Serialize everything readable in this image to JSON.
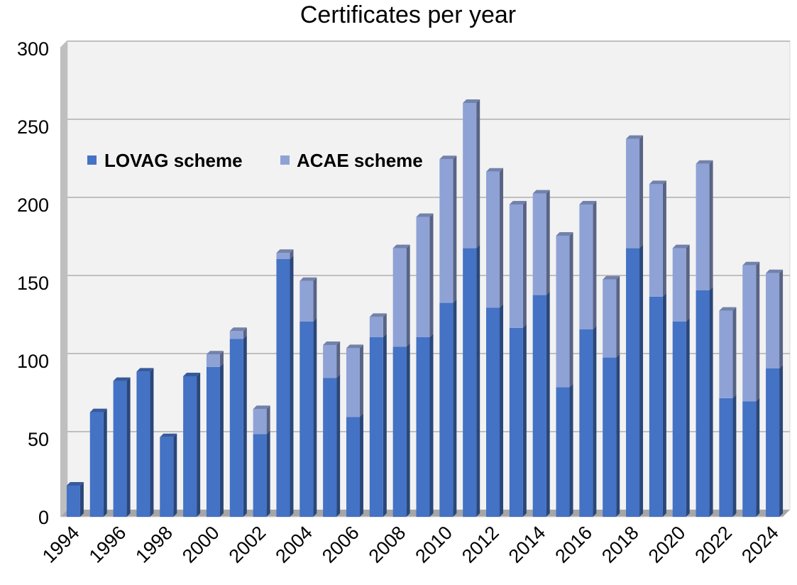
{
  "chart_data": {
    "type": "bar",
    "stacked": true,
    "title": "Certificates per year",
    "xlabel": "",
    "ylabel": "",
    "ylim": [
      0,
      300
    ],
    "yticks": [
      0,
      50,
      100,
      150,
      200,
      250,
      300
    ],
    "categories": [
      1994,
      1995,
      1996,
      1997,
      1998,
      1999,
      2000,
      2001,
      2002,
      2003,
      2004,
      2005,
      2006,
      2007,
      2008,
      2009,
      2010,
      2011,
      2012,
      2013,
      2014,
      2015,
      2016,
      2017,
      2018,
      2019,
      2020,
      2021,
      2022,
      2023,
      2024
    ],
    "xtick_labels": [
      "1994",
      "1996",
      "1998",
      "2000",
      "2002",
      "2004",
      "2006",
      "2008",
      "2010",
      "2012",
      "2014",
      "2016",
      "2018",
      "2020",
      "2022",
      "2024"
    ],
    "series": [
      {
        "name": "LOVAG scheme",
        "color": "#4472C4",
        "values": [
          20,
          67,
          87,
          93,
          51,
          90,
          96,
          114,
          53,
          165,
          125,
          89,
          64,
          115,
          109,
          115,
          137,
          172,
          134,
          121,
          142,
          83,
          120,
          102,
          172,
          141,
          125,
          145,
          76,
          74,
          95
        ]
      },
      {
        "name": "ACAE scheme",
        "color": "#8FA2D6",
        "values": [
          0,
          0,
          0,
          0,
          0,
          0,
          8,
          5,
          16,
          4,
          26,
          21,
          44,
          13,
          63,
          77,
          92,
          93,
          87,
          79,
          65,
          97,
          80,
          50,
          70,
          72,
          47,
          81,
          56,
          87,
          61
        ]
      }
    ],
    "grid": true,
    "legend": "top-left",
    "colors": {
      "plot_background": "#F2F2F2",
      "floor": "#A6A6A6",
      "gridline": "#BFBFBF"
    }
  }
}
